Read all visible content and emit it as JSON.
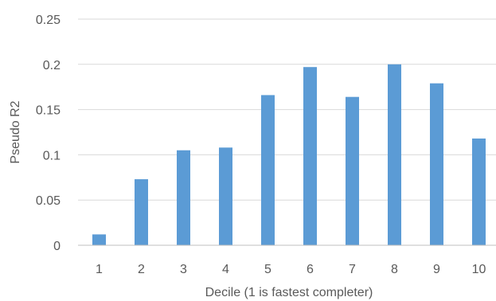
{
  "chart_data": {
    "type": "bar",
    "title": "",
    "xlabel": "Decile (1 is fastest completer)",
    "ylabel": "Pseudo R2",
    "categories": [
      "1",
      "2",
      "3",
      "4",
      "5",
      "6",
      "7",
      "8",
      "9",
      "10"
    ],
    "values": [
      0.012,
      0.073,
      0.105,
      0.108,
      0.166,
      0.197,
      0.164,
      0.2,
      0.179,
      0.118
    ],
    "ylim": [
      0,
      0.25
    ],
    "yticks": [
      "0",
      "0.05",
      "0.1",
      "0.15",
      "0.2",
      "0.25"
    ],
    "grid": true,
    "legend": "none",
    "colors": {
      "bar": "#5b9bd5",
      "grid": "#d9d9d9",
      "axis": "#bfbfbf",
      "text": "#595959"
    }
  }
}
